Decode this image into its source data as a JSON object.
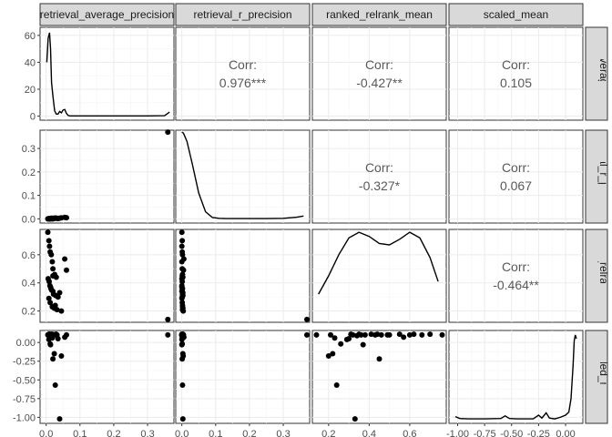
{
  "chart_data": {
    "type": "scatter",
    "title": "",
    "variables": [
      "retrieval_average_precision",
      "retrieval_r_precision",
      "ranked_relrank_mean",
      "scaled_mean"
    ],
    "x_axes": [
      {
        "ticks": [
          0.0,
          0.1,
          0.2,
          0.3
        ],
        "labels": [
          "0.0",
          "0.1",
          "0.2",
          "0.3"
        ],
        "range": [
          -0.018,
          0.378
        ]
      },
      {
        "ticks": [
          0.0,
          0.1,
          0.2,
          0.3
        ],
        "labels": [
          "0.0",
          "0.1",
          "0.2",
          "0.3"
        ],
        "range": [
          -0.018,
          0.378
        ]
      },
      {
        "ticks": [
          0.2,
          0.4,
          0.6
        ],
        "labels": [
          "0.2",
          "0.4",
          "0.6"
        ],
        "range": [
          0.12,
          0.78
        ]
      },
      {
        "ticks": [
          -1.0,
          -0.75,
          -0.5,
          -0.25,
          0.0
        ],
        "labels": [
          "-1.00",
          "-0.75",
          "-0.50",
          "-0.25",
          "0.00"
        ],
        "range": [
          -1.08,
          0.16
        ]
      }
    ],
    "y_axes": [
      {
        "ticks": [
          0,
          20,
          40,
          60
        ],
        "labels": [
          "0",
          "20",
          "40",
          "60"
        ],
        "range": [
          -3,
          66
        ]
      },
      {
        "ticks": [
          0.0,
          0.1,
          0.2,
          0.3
        ],
        "labels": [
          "0.0",
          "0.1",
          "0.2",
          "0.3"
        ],
        "range": [
          -0.018,
          0.378
        ]
      },
      {
        "ticks": [
          0.2,
          0.4,
          0.6
        ],
        "labels": [
          "0.2",
          "0.4",
          "0.6"
        ],
        "range": [
          0.12,
          0.78
        ]
      },
      {
        "ticks": [
          0.0,
          -0.25,
          -0.5,
          -0.75,
          -1.0
        ],
        "labels": [
          "0.00",
          "-0.25",
          "-0.50",
          "-0.75",
          "-1.00"
        ],
        "range": [
          -1.08,
          0.16
        ]
      }
    ],
    "correlations": [
      {
        "row": 0,
        "col": 1,
        "label": "Corr:",
        "value": "0.976***"
      },
      {
        "row": 0,
        "col": 2,
        "label": "Corr:",
        "value": "-0.427**"
      },
      {
        "row": 0,
        "col": 3,
        "label": "Corr:",
        "value": "0.105"
      },
      {
        "row": 1,
        "col": 2,
        "label": "Corr:",
        "value": "-0.327*"
      },
      {
        "row": 1,
        "col": 3,
        "label": "Corr:",
        "value": "0.067"
      },
      {
        "row": 2,
        "col": 3,
        "label": "Corr:",
        "value": "-0.464**"
      }
    ],
    "densities": [
      {
        "var": 0,
        "x": [
          0.002,
          0.006,
          0.01,
          0.013,
          0.016,
          0.02,
          0.025,
          0.03,
          0.035,
          0.04,
          0.045,
          0.05,
          0.055,
          0.06,
          0.065,
          0.07,
          0.1,
          0.2,
          0.3,
          0.35,
          0.357,
          0.365
        ],
        "y": [
          40,
          58,
          62,
          50,
          25,
          15,
          4,
          1.5,
          1.5,
          3.5,
          2.5,
          4.5,
          5,
          2,
          0.5,
          0.2,
          0.2,
          0.2,
          0.2,
          0.3,
          1.5,
          3
        ]
      },
      {
        "var": 1,
        "x": [
          0.0,
          0.005,
          0.015,
          0.03,
          0.05,
          0.07,
          0.09,
          0.11,
          0.13,
          0.16,
          0.2,
          0.25,
          0.3,
          0.34,
          0.36
        ],
        "y": [
          0.37,
          0.365,
          0.33,
          0.24,
          0.11,
          0.03,
          0.006,
          0.002,
          0.001,
          0.001,
          0.001,
          0.001,
          0.002,
          0.007,
          0.012
        ]
      },
      {
        "var": 2,
        "x": [
          0.15,
          0.2,
          0.25,
          0.3,
          0.35,
          0.4,
          0.45,
          0.5,
          0.55,
          0.6,
          0.65,
          0.7,
          0.74
        ],
        "y": [
          0.32,
          0.45,
          0.6,
          0.72,
          0.76,
          0.73,
          0.68,
          0.67,
          0.71,
          0.76,
          0.72,
          0.58,
          0.41
        ]
      },
      {
        "var": 3,
        "x": [
          -1.02,
          -0.98,
          -0.9,
          -0.75,
          -0.6,
          -0.56,
          -0.52,
          -0.45,
          -0.3,
          -0.25,
          -0.22,
          -0.18,
          -0.15,
          -0.1,
          -0.05,
          0.0,
          0.03,
          0.05,
          0.07,
          0.08,
          0.09,
          0.1
        ],
        "y": [
          -0.99,
          -1.015,
          -1.02,
          -1.02,
          -1.015,
          -0.98,
          -1.015,
          -1.02,
          -1.02,
          -0.97,
          -1.01,
          -0.94,
          -1.01,
          -1.02,
          -1.0,
          -0.97,
          -0.93,
          -0.75,
          -0.3,
          0.02,
          0.1,
          0.05
        ]
      }
    ],
    "points": {
      "retrieval_average_precision": [
        0.005,
        0.008,
        0.01,
        0.012,
        0.015,
        0.018,
        0.02,
        0.025,
        0.03,
        0.06,
        0.006,
        0.009,
        0.011,
        0.014,
        0.016,
        0.02,
        0.022,
        0.028,
        0.035,
        0.008,
        0.012,
        0.018,
        0.024,
        0.032,
        0.045,
        0.055,
        0.013,
        0.02,
        0.027,
        0.04,
        0.36
      ],
      "retrieval_r_precision": [
        0.0,
        0.001,
        0.0,
        0.001,
        0.002,
        0.0,
        0.001,
        0.002,
        0.003,
        0.005,
        0.0,
        0.001,
        0.0,
        0.002,
        0.001,
        0.0,
        0.002,
        0.003,
        0.001,
        0.0,
        0.001,
        0.002,
        0.003,
        0.002,
        0.004,
        0.006,
        0.0,
        0.001,
        0.002,
        0.003,
        0.37
      ],
      "ranked_relrank_mean": [
        0.76,
        0.7,
        0.66,
        0.62,
        0.6,
        0.55,
        0.5,
        0.46,
        0.44,
        0.49,
        0.43,
        0.41,
        0.38,
        0.36,
        0.35,
        0.34,
        0.32,
        0.31,
        0.3,
        0.29,
        0.26,
        0.23,
        0.22,
        0.21,
        0.2,
        0.57,
        0.37,
        0.45,
        0.24,
        0.33,
        0.14
      ],
      "scaled_mean": [
        0.1,
        0.11,
        0.1,
        0.11,
        0.1,
        0.11,
        0.1,
        0.1,
        0.11,
        0.1,
        0.1,
        0.11,
        0.1,
        0.1,
        0.11,
        0.09,
        0.1,
        0.11,
        0.05,
        0.04,
        -0.02,
        0.06,
        -0.15,
        0.1,
        -0.18,
        0.07,
        -0.03,
        -0.22,
        -0.57,
        -1.02,
        0.1
      ]
    }
  }
}
